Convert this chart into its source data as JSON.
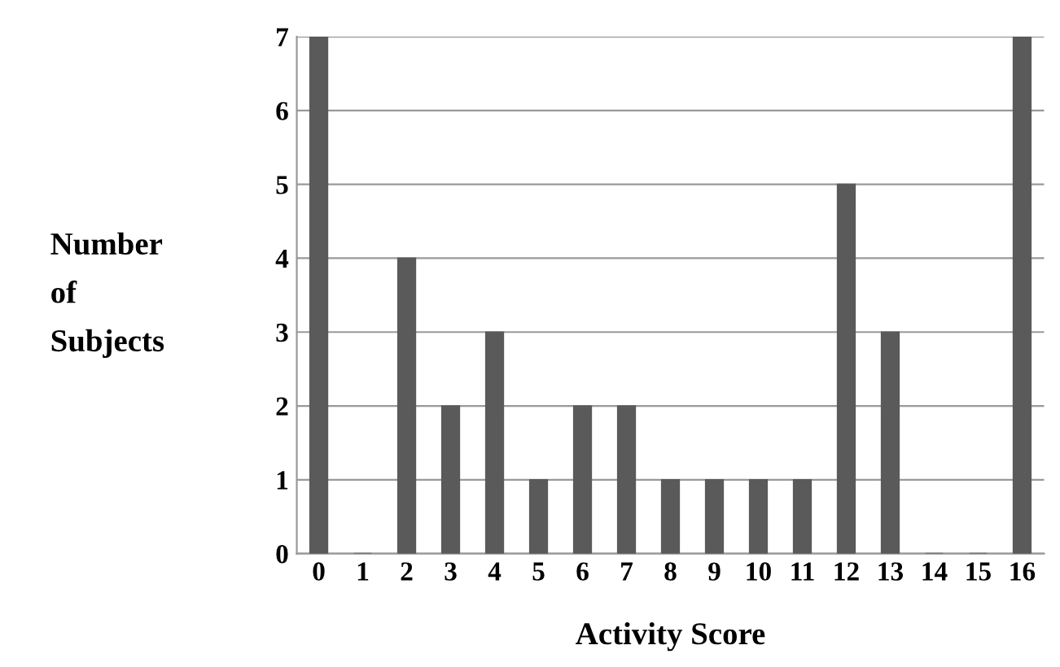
{
  "chart_data": {
    "type": "bar",
    "categories": [
      "0",
      "1",
      "2",
      "3",
      "4",
      "5",
      "6",
      "7",
      "8",
      "9",
      "10",
      "11",
      "12",
      "13",
      "14",
      "15",
      "16"
    ],
    "values": [
      7,
      0,
      4,
      2,
      3,
      1,
      2,
      2,
      1,
      1,
      1,
      1,
      5,
      3,
      0,
      0,
      7
    ],
    "color": "#5a5a5a",
    "xlabel": "Activity Score",
    "ylabel": "Number\nof\nSubjects",
    "ylim": [
      0,
      7
    ],
    "yticks": [
      0,
      1,
      2,
      3,
      4,
      5,
      6,
      7
    ],
    "grid": "y",
    "legend": false
  }
}
